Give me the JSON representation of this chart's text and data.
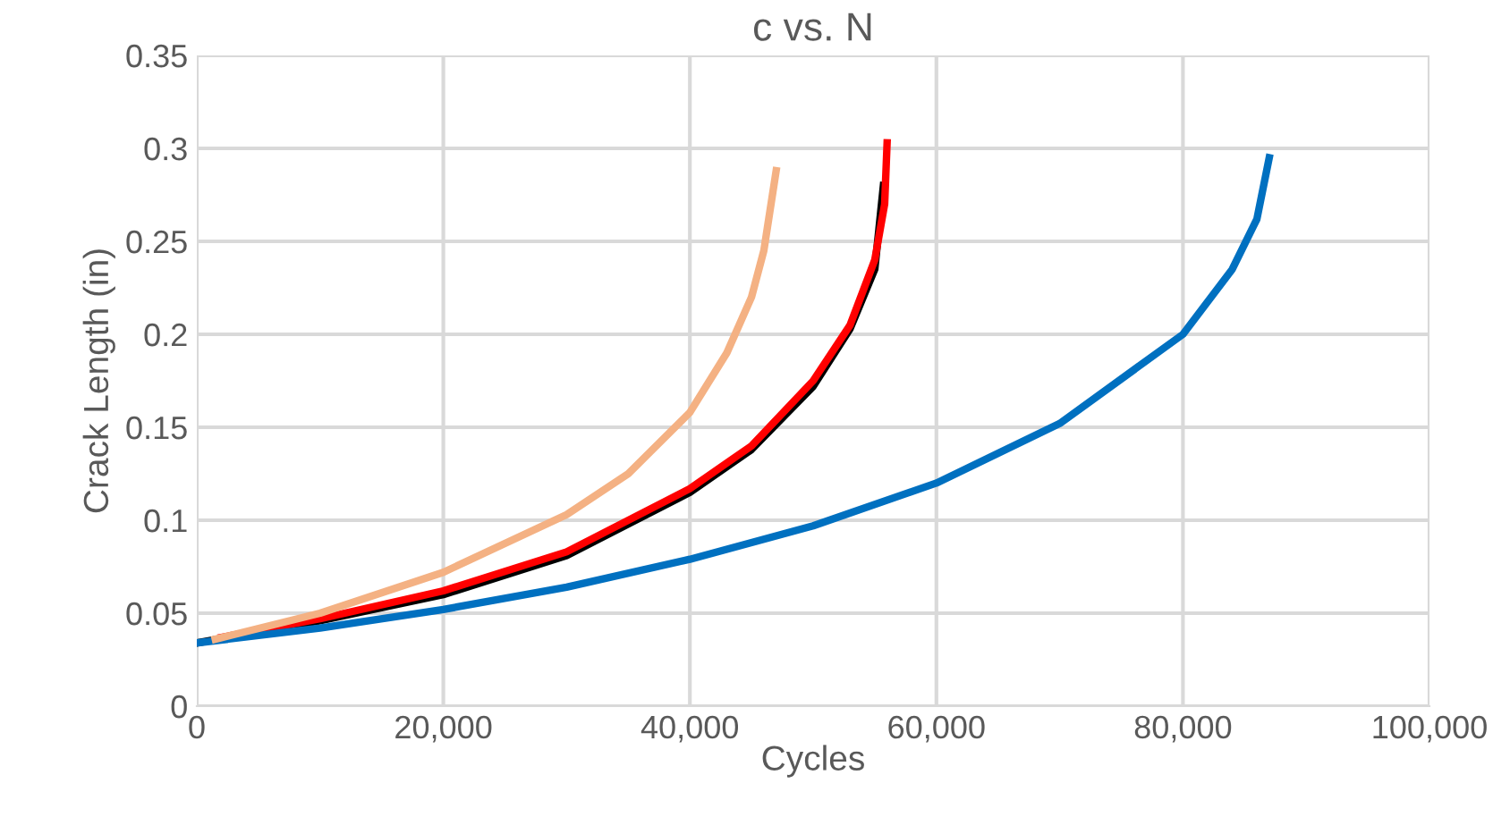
{
  "chart_data": {
    "type": "line",
    "title": "c vs. N",
    "xlabel": "Cycles",
    "ylabel": "Crack Length (in)",
    "xlim": [
      0,
      100000
    ],
    "ylim": [
      0,
      0.35
    ],
    "xticks": [
      {
        "value": 0,
        "label": "0"
      },
      {
        "value": 20000,
        "label": "20,000"
      },
      {
        "value": 40000,
        "label": "40,000"
      },
      {
        "value": 60000,
        "label": "60,000"
      },
      {
        "value": 80000,
        "label": "80,000"
      },
      {
        "value": 100000,
        "label": "100,000"
      }
    ],
    "yticks": [
      0,
      0.05,
      0.1,
      0.15,
      0.2,
      0.25,
      0.3,
      0.35
    ],
    "grid": true,
    "marker": "none",
    "line_style": "solid",
    "series": [
      {
        "color": "#000000",
        "x": [
          0,
          10000,
          20000,
          30000,
          40000,
          45000,
          50000,
          53000,
          55000,
          55700
        ],
        "values": [
          0.034,
          0.046,
          0.06,
          0.081,
          0.115,
          0.138,
          0.172,
          0.203,
          0.235,
          0.28
        ]
      },
      {
        "color": "#ff0000",
        "x": [
          2000,
          10000,
          20000,
          30000,
          40000,
          45000,
          50000,
          53000,
          55000,
          55800,
          56000
        ],
        "values": [
          0.037,
          0.047,
          0.062,
          0.083,
          0.117,
          0.14,
          0.175,
          0.205,
          0.24,
          0.27,
          0.303
        ]
      },
      {
        "color": "#0070c0",
        "x": [
          0,
          10000,
          20000,
          30000,
          40000,
          50000,
          60000,
          70000,
          80000,
          84000,
          86000,
          87000
        ],
        "values": [
          0.034,
          0.042,
          0.052,
          0.064,
          0.079,
          0.097,
          0.12,
          0.152,
          0.2,
          0.235,
          0.262,
          0.295
        ]
      },
      {
        "color": "#f4b183",
        "x": [
          1500,
          10000,
          20000,
          30000,
          35000,
          40000,
          43000,
          45000,
          46000,
          47000
        ],
        "values": [
          0.036,
          0.05,
          0.072,
          0.103,
          0.125,
          0.158,
          0.19,
          0.22,
          0.245,
          0.288
        ]
      }
    ]
  }
}
